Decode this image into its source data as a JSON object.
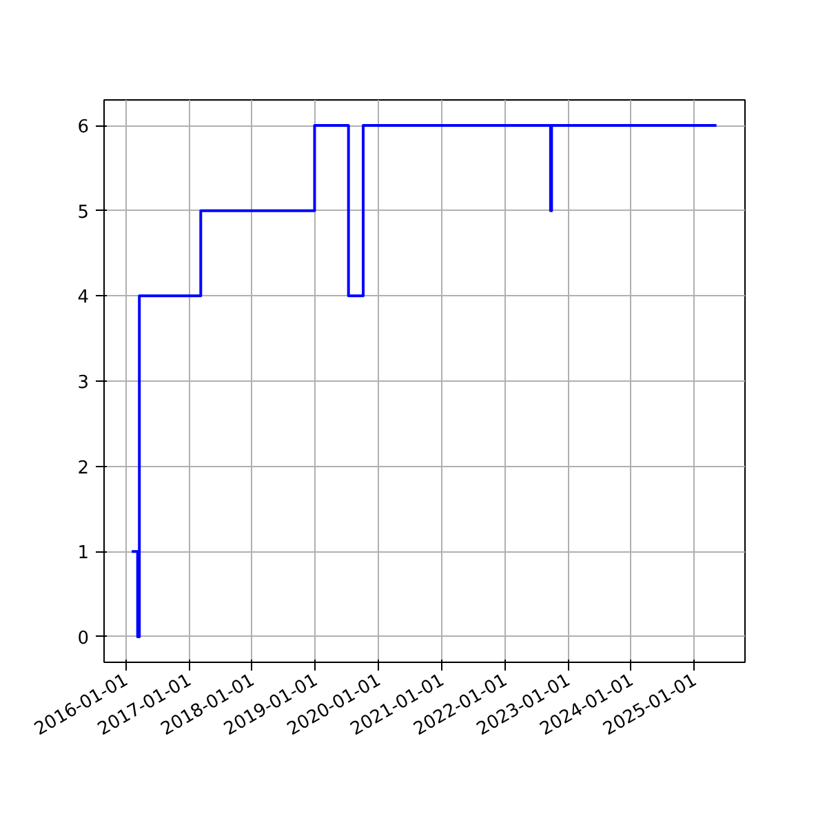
{
  "chart_data": {
    "type": "step",
    "x": [
      "2016-02-05",
      "2016-03-10",
      "2016-03-20",
      "2017-03-10",
      "2018-12-28",
      "2019-07-12",
      "2019-10-05",
      "2022-09-22",
      "2022-09-28",
      "2025-05-08"
    ],
    "series": [
      {
        "color": "#0000ff",
        "values": [
          1,
          0,
          4,
          5,
          6,
          4,
          6,
          5,
          6,
          6
        ]
      }
    ],
    "xlim": [
      "2015-08-29",
      "2025-10-20"
    ],
    "xticks": [
      "2016-01-01",
      "2017-01-01",
      "2018-01-01",
      "2019-01-01",
      "2020-01-01",
      "2021-01-01",
      "2022-01-01",
      "2023-01-01",
      "2024-01-01",
      "2025-01-01"
    ],
    "ylim": [
      -0.3,
      6.3
    ],
    "yticks": [
      0,
      1,
      2,
      3,
      4,
      5,
      6
    ],
    "grid": true
  }
}
